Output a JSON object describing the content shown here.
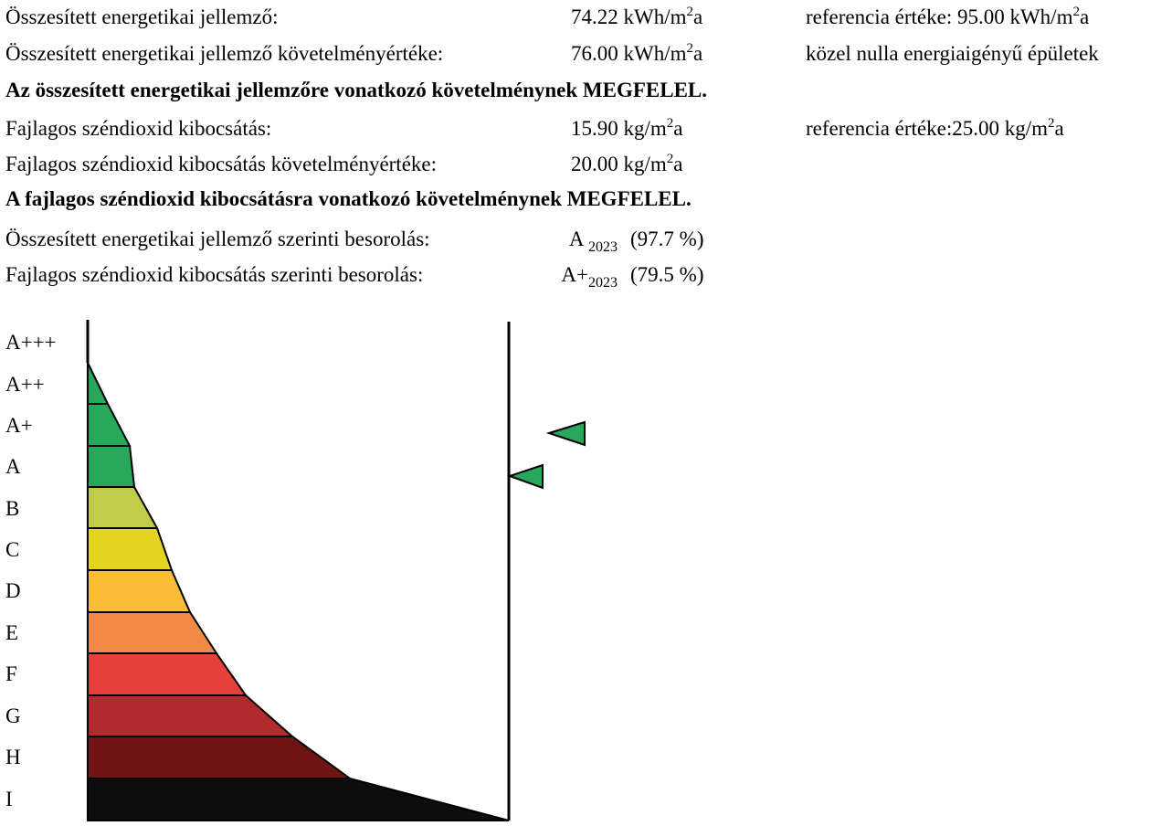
{
  "rows": {
    "r1": {
      "label": "Összesített energetikai jellemző:",
      "value": "74.22 kWh/m",
      "value_sup": "2",
      "value_tail": "a",
      "ref_text": "referencia értéke: 95.00 kWh/m",
      "ref_sup": "2",
      "ref_tail": "a"
    },
    "r2": {
      "label": "Összesített energetikai jellemző követelményértéke:",
      "value": "76.00 kWh/m",
      "value_sup": "2",
      "value_tail": "a",
      "note": "közel nulla energiaigényű épületek"
    },
    "r3": {
      "text": "Az összesített energetikai jellemzőre vonatkozó követelménynek MEGFELEL."
    },
    "r4": {
      "label": "Fajlagos széndioxid kibocsátás:",
      "value": "15.90 kg/m",
      "value_sup": "2",
      "value_tail": "a",
      "ref_text": "referencia értéke:25.00 kg/m",
      "ref_sup": "2",
      "ref_tail": "a"
    },
    "r5": {
      "label": "Fajlagos széndioxid kibocsátás követelményértéke:",
      "value": "20.00 kg/m",
      "value_sup": "2",
      "value_tail": "a"
    },
    "r6": {
      "text": "A fajlagos széndioxid kibocsátásra vonatkozó követelménynek MEGFELEL."
    },
    "r7": {
      "label": "Összesített energetikai jellemző szerinti besorolás:",
      "class": "A",
      "class_sub": "2023",
      "pct": "(97.7 %)"
    },
    "r8": {
      "label": "Fajlagos széndioxid kibocsátás szerinti besorolás:",
      "class": "A+",
      "class_sub": "2023",
      "pct": "(79.5 %)"
    }
  },
  "scale": {
    "classes": [
      {
        "label": "A+++",
        "color": ""
      },
      {
        "label": "A++",
        "color": "#27a85a"
      },
      {
        "label": "A+",
        "color": "#27a85a"
      },
      {
        "label": "A",
        "color": "#27a85a"
      },
      {
        "label": "B",
        "color": "#c2cc4b"
      },
      {
        "label": "C",
        "color": "#e4d420"
      },
      {
        "label": "D",
        "color": "#fbbd38"
      },
      {
        "label": "E",
        "color": "#f08a45"
      },
      {
        "label": "F",
        "color": "#e6403a"
      },
      {
        "label": "G",
        "color": "#b02a2e"
      },
      {
        "label": "H",
        "color": "#6f1515"
      },
      {
        "label": "I",
        "color": "#0d0d0d"
      }
    ],
    "marker_color": "#27a85a"
  }
}
